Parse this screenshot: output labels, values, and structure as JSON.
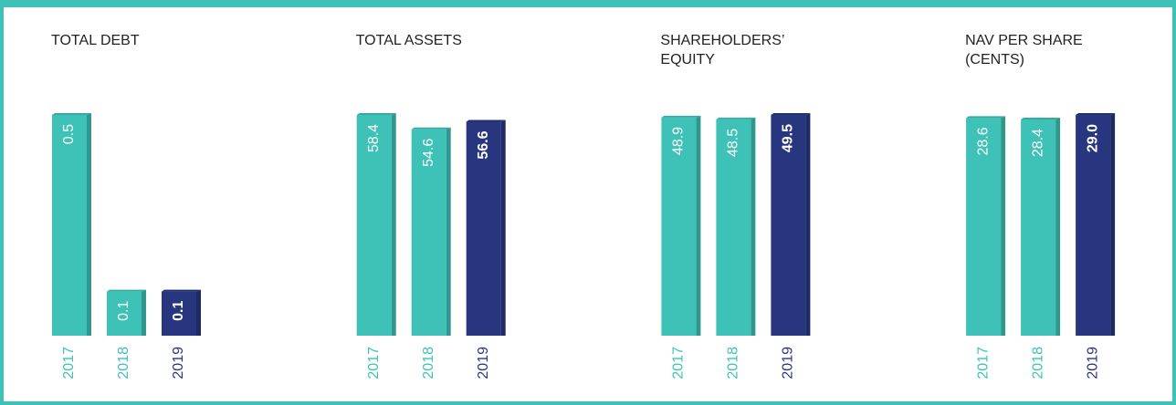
{
  "chart_data": [
    {
      "type": "bar",
      "title": "TOTAL DEBT",
      "categories": [
        "2017",
        "2018",
        "2019"
      ],
      "values": [
        0.5,
        0.1,
        0.1
      ],
      "colors": [
        "#3ec1b6",
        "#3ec1b6",
        "#27367f"
      ]
    },
    {
      "type": "bar",
      "title": "TOTAL ASSETS",
      "categories": [
        "2017",
        "2018",
        "2019"
      ],
      "values": [
        58.4,
        54.6,
        56.6
      ],
      "colors": [
        "#3ec1b6",
        "#3ec1b6",
        "#27367f"
      ]
    },
    {
      "type": "bar",
      "title": "SHAREHOLDERS’ EQUITY",
      "categories": [
        "2017",
        "2018",
        "2019"
      ],
      "values": [
        48.9,
        48.5,
        49.5
      ],
      "colors": [
        "#3ec1b6",
        "#3ec1b6",
        "#27367f"
      ]
    },
    {
      "type": "bar",
      "title": "NAV PER SHARE (CENTS)",
      "categories": [
        "2017",
        "2018",
        "2019"
      ],
      "values": [
        28.6,
        28.4,
        29.0
      ],
      "value_labels": [
        "28.6",
        "28.4",
        "29.0"
      ],
      "colors": [
        "#3ec1b6",
        "#3ec1b6",
        "#27367f"
      ]
    }
  ]
}
